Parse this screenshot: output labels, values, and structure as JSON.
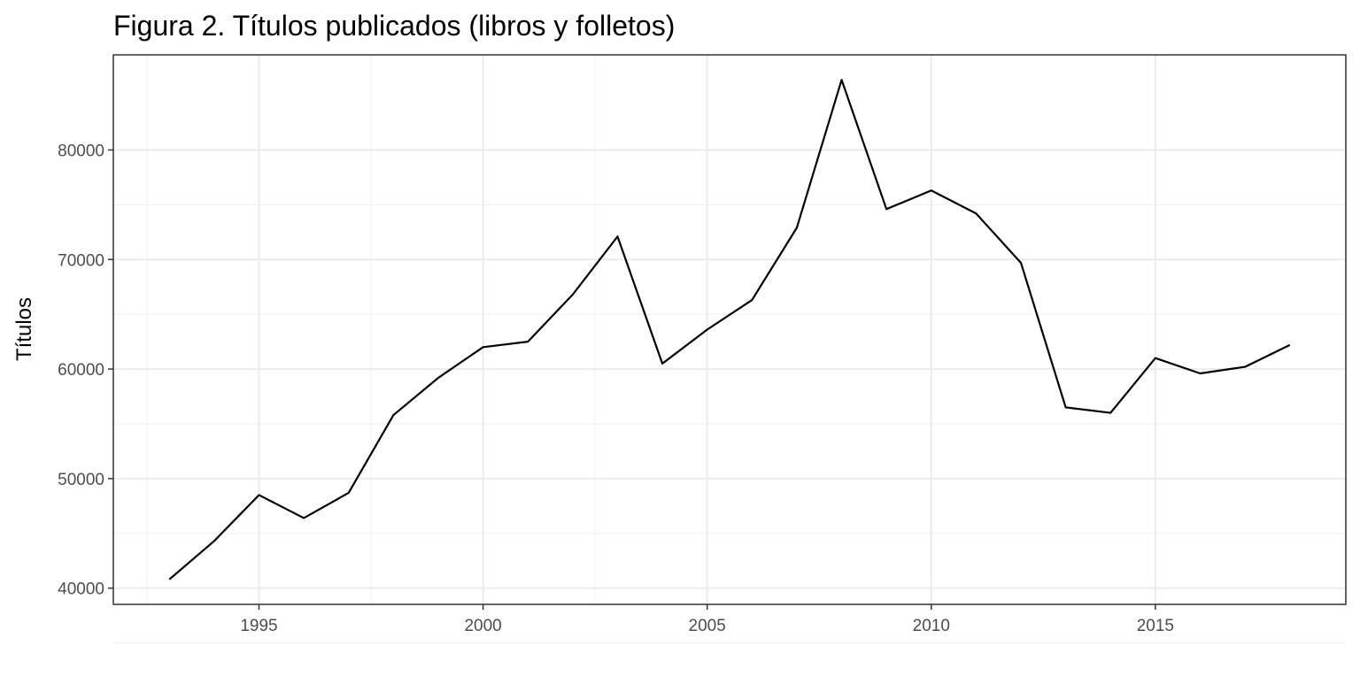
{
  "chart_data": {
    "type": "line",
    "title": "Figura 2. Títulos publicados (libros y folletos)",
    "y_label": "Títulos",
    "x": [
      1993,
      1994,
      1995,
      1996,
      1997,
      1998,
      1999,
      2000,
      2001,
      2002,
      2003,
      2004,
      2005,
      2006,
      2007,
      2008,
      2009,
      2010,
      2011,
      2012,
      2013,
      2014,
      2015,
      2016,
      2017,
      2018
    ],
    "series": [
      {
        "color": "#000000",
        "values": [
          40800,
          44300,
          48500,
          46400,
          48700,
          55800,
          59200,
          62000,
          62500,
          66800,
          72100,
          60500,
          63600,
          66300,
          72900,
          86400,
          74600,
          76300,
          74200,
          69700,
          56500,
          56000,
          61000,
          59600,
          60200,
          62200
        ]
      }
    ],
    "xlim": [
      1991.75,
      2019.25
    ],
    "xticks": [
      1995,
      2000,
      2005,
      2010,
      2015
    ],
    "ylim": [
      38520,
      88680
    ],
    "yticks": [
      40000,
      50000,
      60000,
      70000,
      80000
    ],
    "grid": true
  }
}
